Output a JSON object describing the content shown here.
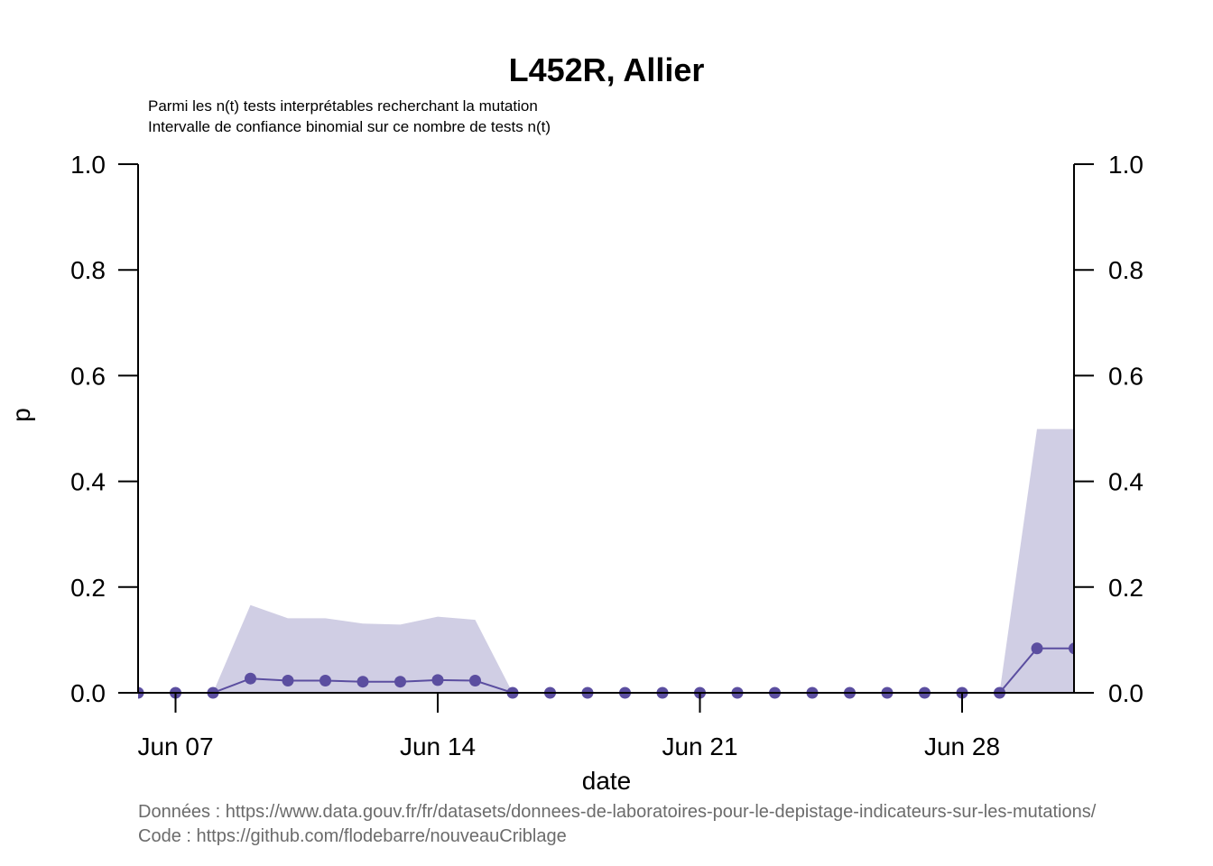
{
  "chart_data": {
    "type": "line",
    "title": "L452R, Allier",
    "subtitle_lines": [
      "Parmi les n(t) tests interprétables recherchant la mutation",
      "Intervalle de confiance binomial sur ce nombre de tests n(t)"
    ],
    "xlabel": "date",
    "ylabel": "p",
    "ylim": [
      0,
      1
    ],
    "yticks": [
      "0.0",
      "0.2",
      "0.4",
      "0.6",
      "0.8",
      "1.0"
    ],
    "xticks": [
      {
        "date": "2021-06-07",
        "label": "Jun 07"
      },
      {
        "date": "2021-06-14",
        "label": "Jun 14"
      },
      {
        "date": "2021-06-21",
        "label": "Jun 21"
      },
      {
        "date": "2021-06-28",
        "label": "Jun 28"
      }
    ],
    "series": [
      {
        "color": "#5b4ea0",
        "band_color": "#d0cee4",
        "x": [
          "2021-06-06",
          "2021-06-07",
          "2021-06-08",
          "2021-06-09",
          "2021-06-10",
          "2021-06-11",
          "2021-06-12",
          "2021-06-13",
          "2021-06-14",
          "2021-06-15",
          "2021-06-16",
          "2021-06-17",
          "2021-06-18",
          "2021-06-19",
          "2021-06-20",
          "2021-06-21",
          "2021-06-22",
          "2021-06-23",
          "2021-06-24",
          "2021-06-25",
          "2021-06-26",
          "2021-06-27",
          "2021-06-28",
          "2021-06-29",
          "2021-06-30",
          "2021-07-01"
        ],
        "y": [
          0,
          0,
          0,
          0.027,
          0.023,
          0.023,
          0.021,
          0.021,
          0.024,
          0.023,
          0,
          0,
          0,
          0,
          0,
          0,
          0,
          0,
          0,
          0,
          0,
          0,
          0,
          0,
          0.084,
          0.084
        ],
        "lower": [
          0,
          0,
          0,
          0,
          0,
          0,
          0,
          0,
          0,
          0,
          0,
          0,
          0,
          0,
          0,
          0,
          0,
          0,
          0,
          0,
          0,
          0,
          0,
          0,
          0,
          0
        ],
        "upper": [
          0,
          0,
          0,
          0.166,
          0.141,
          0.141,
          0.131,
          0.129,
          0.144,
          0.138,
          0,
          0,
          0,
          0,
          0,
          0,
          0,
          0,
          0,
          0,
          0,
          0,
          0,
          0,
          0.499,
          0.499
        ]
      }
    ],
    "grid": false,
    "secondary_y_axis": true
  },
  "source": {
    "data_line": "Données : https://www.data.gouv.fr/fr/datasets/donnees-de-laboratoires-pour-le-depistage-indicateurs-sur-les-mutations/",
    "code_line": "Code : https://github.com/flodebarre/nouveauCriblage"
  }
}
